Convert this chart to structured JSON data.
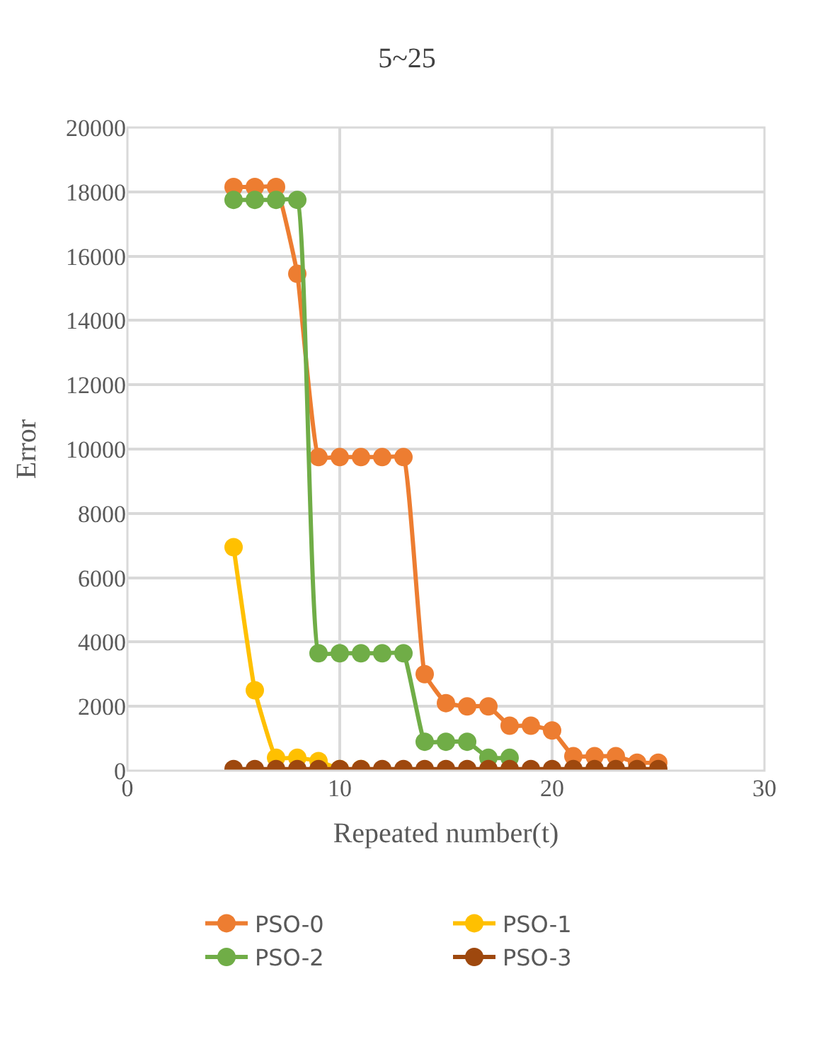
{
  "chart_data": {
    "type": "line",
    "title": "5~25",
    "xlabel": "Repeated number(t)",
    "ylabel": "Error",
    "x": [
      5,
      6,
      7,
      8,
      9,
      10,
      11,
      12,
      13,
      14,
      15,
      16,
      17,
      18,
      19,
      20,
      21,
      22,
      23,
      24,
      25
    ],
    "xlim": [
      0,
      30
    ],
    "xticks": [
      0,
      10,
      20,
      30
    ],
    "ylim": [
      0,
      20000
    ],
    "yticks": [
      0,
      2000,
      4000,
      6000,
      8000,
      10000,
      12000,
      14000,
      16000,
      18000,
      20000
    ],
    "grid": true,
    "legend": "bottom",
    "marker": "circle",
    "series": [
      {
        "name": "PSO-0",
        "color": "#ed7d31",
        "values": [
          18150,
          18150,
          18150,
          15450,
          9750,
          9750,
          9750,
          9750,
          9750,
          3000,
          2100,
          2000,
          2000,
          1400,
          1400,
          1250,
          450,
          450,
          450,
          250,
          250
        ]
      },
      {
        "name": "PSO-1",
        "color": "#ffc000",
        "values": [
          6950,
          2500,
          400,
          400,
          300,
          50,
          50,
          null,
          null,
          null,
          null,
          null,
          null,
          null,
          null,
          null,
          null,
          null,
          null,
          null,
          null
        ]
      },
      {
        "name": "PSO-2",
        "color": "#70ad47",
        "values": [
          17750,
          17750,
          17750,
          17750,
          3650,
          3650,
          3650,
          3650,
          3650,
          900,
          900,
          900,
          400,
          400,
          null,
          null,
          null,
          null,
          null,
          null,
          null
        ]
      },
      {
        "name": "PSO-3",
        "color": "#9e480e",
        "values": [
          50,
          50,
          50,
          50,
          50,
          50,
          50,
          50,
          50,
          50,
          50,
          50,
          50,
          50,
          50,
          50,
          50,
          50,
          50,
          50,
          50
        ]
      }
    ]
  }
}
